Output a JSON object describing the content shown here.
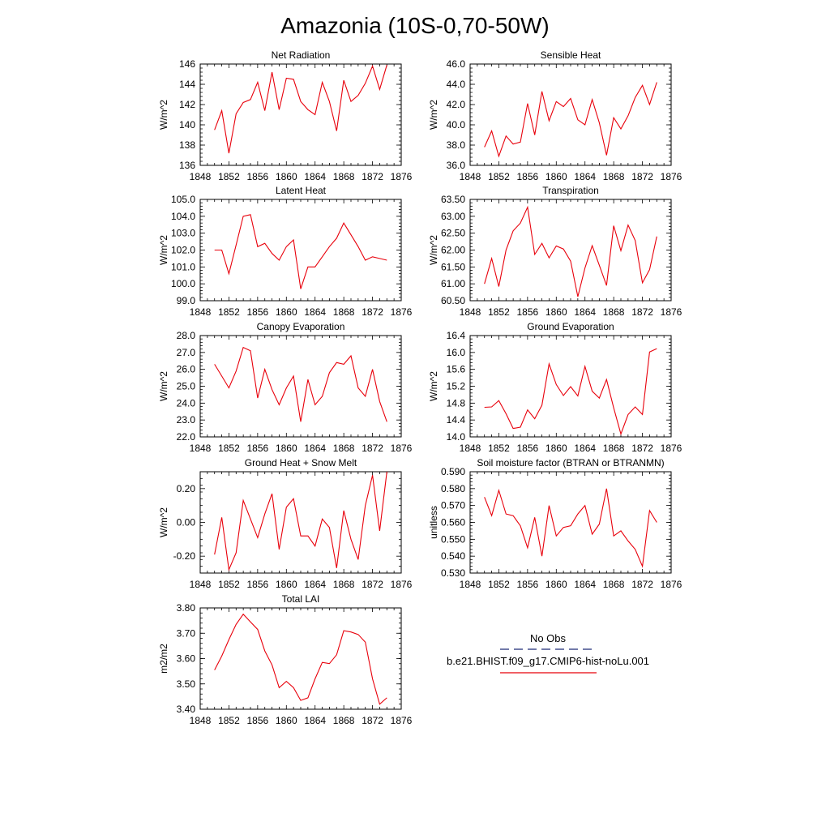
{
  "title": "Amazonia (10S-0,70-50W)",
  "colors": {
    "model": "#e8000b",
    "obs": "#1e2a78",
    "axis": "#000000"
  },
  "legend": {
    "obs_label": "No Obs",
    "model_label": "b.e21.BHIST.f09_g17.CMIP6-hist-noLu.001"
  },
  "chart_data": [
    {
      "type": "line",
      "title": "Net Radiation",
      "ylabel": "W/m^2",
      "xlim": [
        1848,
        1876
      ],
      "xticks": [
        "1848",
        "1852",
        "1856",
        "1860",
        "1864",
        "1868",
        "1872",
        "1876"
      ],
      "ylim": [
        136,
        146
      ],
      "yticks": [
        "136",
        "138",
        "140",
        "142",
        "144",
        "146"
      ],
      "x": [
        1850,
        1851,
        1852,
        1853,
        1854,
        1855,
        1856,
        1857,
        1858,
        1859,
        1860,
        1861,
        1862,
        1863,
        1864,
        1865,
        1866,
        1867,
        1868,
        1869,
        1870,
        1871,
        1872,
        1873,
        1874
      ],
      "series": [
        {
          "values": [
            139.5,
            141.4,
            137.2,
            141.1,
            142.2,
            142.5,
            144.2,
            141.4,
            145.2,
            141.5,
            144.6,
            144.5,
            142.3,
            141.5,
            141.0,
            144.2,
            142.3,
            139.4,
            144.4,
            142.3,
            142.9,
            144.1,
            145.8,
            143.5,
            145.9
          ]
        }
      ]
    },
    {
      "type": "line",
      "title": "Sensible Heat",
      "ylabel": "W/m^2",
      "xlim": [
        1848,
        1876
      ],
      "xticks": [
        "1848",
        "1852",
        "1856",
        "1860",
        "1864",
        "1868",
        "1872",
        "1876"
      ],
      "ylim": [
        36,
        46
      ],
      "yticks": [
        "36.0",
        "38.0",
        "40.0",
        "42.0",
        "44.0",
        "46.0"
      ],
      "x": [
        1850,
        1851,
        1852,
        1853,
        1854,
        1855,
        1856,
        1857,
        1858,
        1859,
        1860,
        1861,
        1862,
        1863,
        1864,
        1865,
        1866,
        1867,
        1868,
        1869,
        1870,
        1871,
        1872,
        1873,
        1874
      ],
      "series": [
        {
          "values": [
            37.8,
            39.4,
            36.9,
            38.9,
            38.1,
            38.3,
            42.1,
            39.0,
            43.3,
            40.4,
            42.3,
            41.8,
            42.6,
            40.5,
            40.0,
            42.5,
            40.2,
            37.0,
            40.7,
            39.6,
            40.9,
            42.7,
            43.9,
            42.0,
            44.2
          ]
        }
      ]
    },
    {
      "type": "line",
      "title": "Latent Heat",
      "ylabel": "W/m^2",
      "xlim": [
        1848,
        1876
      ],
      "xticks": [
        "1848",
        "1852",
        "1856",
        "1860",
        "1864",
        "1868",
        "1872",
        "1876"
      ],
      "ylim": [
        99,
        105
      ],
      "yticks": [
        "99.0",
        "100.0",
        "101.0",
        "102.0",
        "103.0",
        "104.0",
        "105.0"
      ],
      "x": [
        1850,
        1851,
        1852,
        1853,
        1854,
        1855,
        1856,
        1857,
        1858,
        1859,
        1860,
        1861,
        1862,
        1863,
        1864,
        1865,
        1866,
        1867,
        1868,
        1869,
        1870,
        1871,
        1872,
        1873,
        1874
      ],
      "series": [
        {
          "values": [
            102.0,
            102.0,
            100.6,
            102.3,
            104.0,
            104.1,
            102.2,
            102.4,
            101.8,
            101.4,
            102.2,
            102.6,
            99.7,
            101.0,
            101.0,
            101.6,
            102.2,
            102.7,
            103.6,
            102.9,
            102.2,
            101.4,
            101.6,
            101.5,
            101.4
          ]
        }
      ]
    },
    {
      "type": "line",
      "title": "Transpiration",
      "ylabel": "W/m^2",
      "xlim": [
        1848,
        1876
      ],
      "xticks": [
        "1848",
        "1852",
        "1856",
        "1860",
        "1864",
        "1868",
        "1872",
        "1876"
      ],
      "ylim": [
        60.5,
        63.5
      ],
      "yticks": [
        "60.50",
        "61.00",
        "61.50",
        "62.00",
        "62.50",
        "63.00",
        "63.50"
      ],
      "x": [
        1850,
        1851,
        1852,
        1853,
        1854,
        1855,
        1856,
        1857,
        1858,
        1859,
        1860,
        1861,
        1862,
        1863,
        1864,
        1865,
        1866,
        1867,
        1868,
        1869,
        1870,
        1871,
        1872,
        1873,
        1874
      ],
      "series": [
        {
          "values": [
            61.0,
            61.75,
            60.92,
            62.0,
            62.57,
            62.8,
            63.27,
            61.87,
            62.2,
            61.77,
            62.12,
            62.03,
            61.67,
            60.62,
            61.47,
            62.13,
            61.55,
            60.95,
            62.72,
            61.98,
            62.74,
            62.28,
            61.03,
            61.42,
            62.4
          ]
        }
      ]
    },
    {
      "type": "line",
      "title": "Canopy Evaporation",
      "ylabel": "W/m^2",
      "xlim": [
        1848,
        1876
      ],
      "xticks": [
        "1848",
        "1852",
        "1856",
        "1860",
        "1864",
        "1868",
        "1872",
        "1876"
      ],
      "ylim": [
        22,
        28
      ],
      "yticks": [
        "22.0",
        "23.0",
        "24.0",
        "25.0",
        "26.0",
        "27.0",
        "28.0"
      ],
      "x": [
        1850,
        1851,
        1852,
        1853,
        1854,
        1855,
        1856,
        1857,
        1858,
        1859,
        1860,
        1861,
        1862,
        1863,
        1864,
        1865,
        1866,
        1867,
        1868,
        1869,
        1870,
        1871,
        1872,
        1873,
        1874
      ],
      "series": [
        {
          "values": [
            26.3,
            25.6,
            24.9,
            25.9,
            27.3,
            27.1,
            24.3,
            26.0,
            24.8,
            23.9,
            24.9,
            25.6,
            22.9,
            25.4,
            23.9,
            24.4,
            25.8,
            26.4,
            26.3,
            26.8,
            24.9,
            24.4,
            26.0,
            24.1,
            22.9
          ]
        }
      ]
    },
    {
      "type": "line",
      "title": "Ground Evaporation",
      "ylabel": "W/m^2",
      "xlim": [
        1848,
        1876
      ],
      "xticks": [
        "1848",
        "1852",
        "1856",
        "1860",
        "1864",
        "1868",
        "1872",
        "1876"
      ],
      "ylim": [
        14.0,
        16.4
      ],
      "yticks": [
        "14.0",
        "14.4",
        "14.8",
        "15.2",
        "15.6",
        "16.0",
        "16.4"
      ],
      "x": [
        1850,
        1851,
        1852,
        1853,
        1854,
        1855,
        1856,
        1857,
        1858,
        1859,
        1860,
        1861,
        1862,
        1863,
        1864,
        1865,
        1866,
        1867,
        1868,
        1869,
        1870,
        1871,
        1872,
        1873,
        1874
      ],
      "series": [
        {
          "values": [
            14.7,
            14.71,
            14.86,
            14.55,
            14.2,
            14.23,
            14.64,
            14.43,
            14.75,
            15.73,
            15.24,
            14.98,
            15.19,
            14.97,
            15.67,
            15.08,
            14.92,
            15.36,
            14.69,
            14.07,
            14.53,
            14.71,
            14.53,
            16.01,
            16.09
          ]
        }
      ]
    },
    {
      "type": "line",
      "title": "Ground Heat + Snow Melt",
      "ylabel": "W/m^2",
      "xlim": [
        1848,
        1876
      ],
      "xticks": [
        "1848",
        "1852",
        "1856",
        "1860",
        "1864",
        "1868",
        "1872",
        "1876"
      ],
      "ylim": [
        -0.3,
        0.3
      ],
      "yticks": [
        "-0.20",
        "0.00",
        "0.20"
      ],
      "ytick_values": [
        -0.2,
        0.0,
        0.2
      ],
      "x": [
        1850,
        1851,
        1852,
        1853,
        1854,
        1855,
        1856,
        1857,
        1858,
        1859,
        1860,
        1861,
        1862,
        1863,
        1864,
        1865,
        1866,
        1867,
        1868,
        1869,
        1870,
        1871,
        1872,
        1873,
        1874
      ],
      "series": [
        {
          "values": [
            -0.19,
            0.03,
            -0.28,
            -0.18,
            0.13,
            0.02,
            -0.09,
            0.05,
            0.17,
            -0.16,
            0.09,
            0.14,
            -0.08,
            -0.08,
            -0.14,
            0.02,
            -0.03,
            -0.27,
            0.07,
            -0.1,
            -0.22,
            0.1,
            0.28,
            -0.05,
            0.3
          ]
        }
      ]
    },
    {
      "type": "line",
      "title": "Soil moisture factor (BTRAN or BTRANMN)",
      "ylabel": "unitless",
      "xlim": [
        1848,
        1876
      ],
      "xticks": [
        "1848",
        "1852",
        "1856",
        "1860",
        "1864",
        "1868",
        "1872",
        "1876"
      ],
      "ylim": [
        0.53,
        0.59
      ],
      "yticks": [
        "0.530",
        "0.540",
        "0.550",
        "0.560",
        "0.570",
        "0.580",
        "0.590"
      ],
      "x": [
        1850,
        1851,
        1852,
        1853,
        1854,
        1855,
        1856,
        1857,
        1858,
        1859,
        1860,
        1861,
        1862,
        1863,
        1864,
        1865,
        1866,
        1867,
        1868,
        1869,
        1870,
        1871,
        1872,
        1873,
        1874
      ],
      "series": [
        {
          "values": [
            0.575,
            0.564,
            0.579,
            0.565,
            0.564,
            0.558,
            0.545,
            0.563,
            0.54,
            0.57,
            0.552,
            0.557,
            0.558,
            0.565,
            0.57,
            0.553,
            0.559,
            0.58,
            0.552,
            0.555,
            0.549,
            0.544,
            0.534,
            0.567,
            0.56
          ]
        }
      ]
    },
    {
      "type": "line",
      "title": "Total LAI",
      "ylabel": "m2/m2",
      "xlim": [
        1848,
        1876
      ],
      "xticks": [
        "1848",
        "1852",
        "1856",
        "1860",
        "1864",
        "1868",
        "1872",
        "1876"
      ],
      "ylim": [
        3.4,
        3.8
      ],
      "yticks": [
        "3.40",
        "3.50",
        "3.60",
        "3.70",
        "3.80"
      ],
      "x": [
        1850,
        1851,
        1852,
        1853,
        1854,
        1855,
        1856,
        1857,
        1858,
        1859,
        1860,
        1861,
        1862,
        1863,
        1864,
        1865,
        1866,
        1867,
        1868,
        1869,
        1870,
        1871,
        1872,
        1873,
        1874
      ],
      "series": [
        {
          "values": [
            3.555,
            3.61,
            3.675,
            3.735,
            3.775,
            3.745,
            3.715,
            3.63,
            3.575,
            3.485,
            3.51,
            3.485,
            3.435,
            3.445,
            3.52,
            3.585,
            3.58,
            3.615,
            3.71,
            3.705,
            3.695,
            3.665,
            3.52,
            3.42,
            3.445
          ]
        }
      ]
    }
  ]
}
